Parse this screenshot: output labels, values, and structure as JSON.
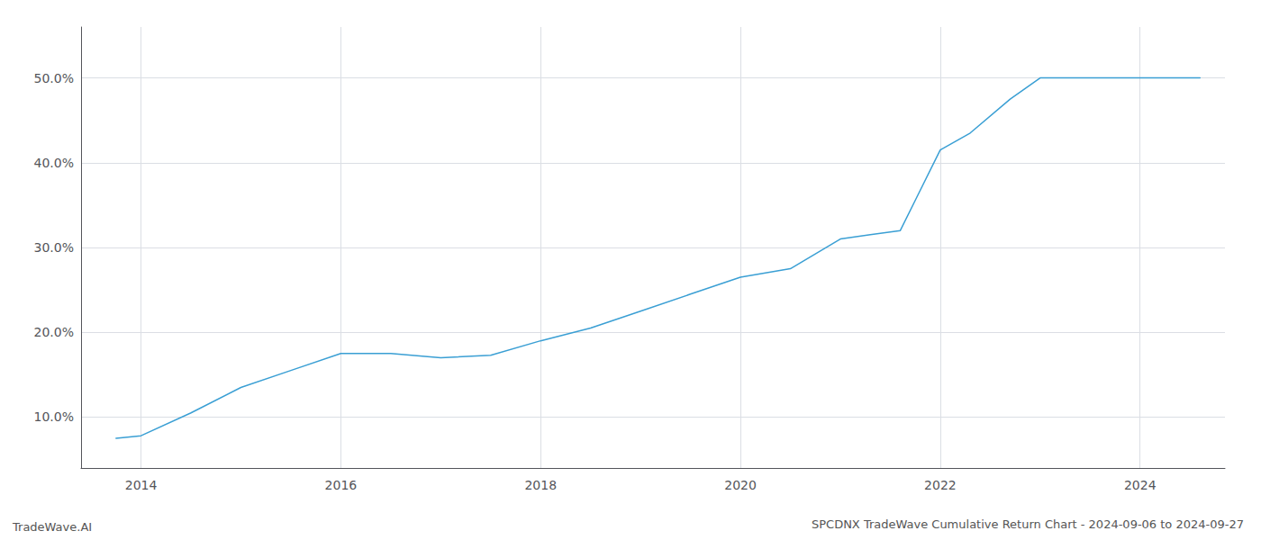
{
  "chart_data": {
    "type": "line",
    "title": "SPCDNX TradeWave Cumulative Return Chart - 2024-09-06 to 2024-09-27",
    "annotations": [
      "TradeWave.AI"
    ],
    "x": [
      2013.75,
      2014.0,
      2014.5,
      2015.0,
      2015.5,
      2016.0,
      2016.5,
      2017.0,
      2017.5,
      2018.0,
      2018.5,
      2019.0,
      2019.5,
      2020.0,
      2020.5,
      2021.0,
      2021.3,
      2021.6,
      2022.0,
      2022.3,
      2022.7,
      2023.0,
      2023.3,
      2023.7,
      2024.0,
      2024.6
    ],
    "values": [
      7.5,
      7.8,
      10.5,
      13.5,
      15.5,
      17.5,
      17.5,
      17.0,
      17.3,
      19.0,
      20.5,
      22.5,
      24.5,
      26.5,
      27.5,
      31.0,
      31.5,
      32.0,
      41.5,
      43.5,
      47.5,
      50.0,
      50.0,
      50.0,
      50.0,
      50.0
    ],
    "color": "#3a9fd4",
    "xlim": [
      2013.4,
      2024.85
    ],
    "xticks": [
      2014,
      2016,
      2018,
      2020,
      2022,
      2024
    ],
    "ylim": [
      4.0,
      56.0
    ],
    "yticks": [
      {
        "value": 10.0,
        "label": "10.0%"
      },
      {
        "value": 20.0,
        "label": "20.0%"
      },
      {
        "value": 30.0,
        "label": "30.0%"
      },
      {
        "value": 40.0,
        "label": "40.0%"
      },
      {
        "value": 50.0,
        "label": "50.0%"
      }
    ],
    "grid": true
  }
}
